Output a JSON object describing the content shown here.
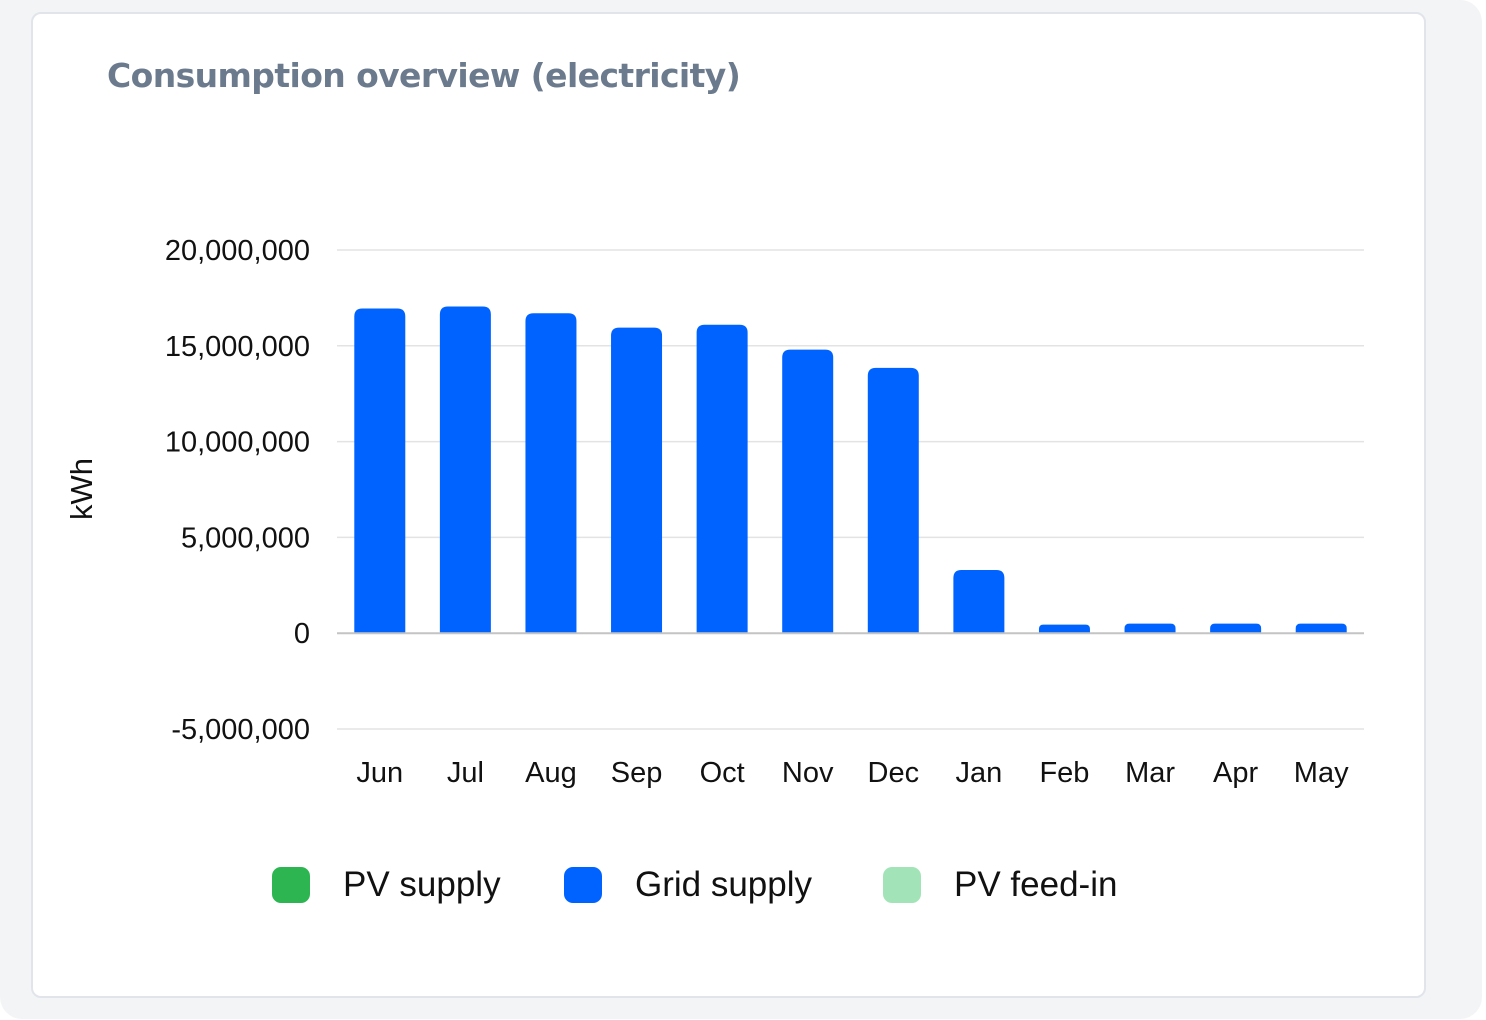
{
  "card": {
    "title": "Consumption overview (electricity)"
  },
  "chart_data": {
    "type": "bar",
    "title": "Consumption overview (electricity)",
    "xlabel": "",
    "ylabel": "kWh",
    "ylim": [
      -5000000,
      20000000
    ],
    "yticks": [
      20000000,
      15000000,
      10000000,
      5000000,
      0,
      -5000000
    ],
    "ytick_labels": [
      "20,000,000",
      "15,000,000",
      "10,000,000",
      "5,000,000",
      "0",
      "-5,000,000"
    ],
    "grid": true,
    "legend_position": "bottom",
    "categories": [
      "Jun",
      "Jul",
      "Aug",
      "Sep",
      "Oct",
      "Nov",
      "Dec",
      "Jan",
      "Feb",
      "Mar",
      "Apr",
      "May"
    ],
    "series": [
      {
        "name": "PV supply",
        "color": "#2db551",
        "values": [
          0,
          0,
          0,
          0,
          0,
          0,
          0,
          0,
          0,
          0,
          0,
          0
        ]
      },
      {
        "name": "Grid supply",
        "color": "#0063ff",
        "values": [
          16950000,
          17050000,
          16700000,
          15950000,
          16100000,
          14800000,
          13850000,
          3300000,
          450000,
          500000,
          500000,
          500000
        ]
      },
      {
        "name": "PV feed-in",
        "color": "#a2e4b8",
        "values": [
          0,
          0,
          0,
          0,
          0,
          0,
          0,
          0,
          0,
          0,
          0,
          0
        ]
      }
    ]
  }
}
